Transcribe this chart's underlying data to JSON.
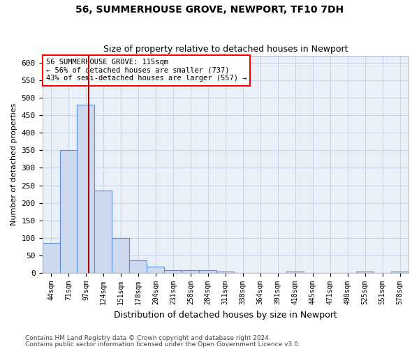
{
  "title": "56, SUMMERHOUSE GROVE, NEWPORT, TF10 7DH",
  "subtitle": "Size of property relative to detached houses in Newport",
  "xlabel": "Distribution of detached houses by size in Newport",
  "ylabel": "Number of detached properties",
  "categories": [
    "44sqm",
    "71sqm",
    "97sqm",
    "124sqm",
    "151sqm",
    "178sqm",
    "204sqm",
    "231sqm",
    "258sqm",
    "284sqm",
    "311sqm",
    "338sqm",
    "364sqm",
    "391sqm",
    "418sqm",
    "445sqm",
    "471sqm",
    "498sqm",
    "525sqm",
    "551sqm",
    "578sqm"
  ],
  "values": [
    85,
    350,
    480,
    235,
    100,
    37,
    18,
    8,
    8,
    8,
    5,
    0,
    0,
    0,
    5,
    0,
    0,
    0,
    5,
    0,
    5
  ],
  "bar_facecolor": "#ccd9ee",
  "bar_edgecolor": "#5b8dd9",
  "grid_color": "#c8d4e8",
  "background_color": "#eaf0f8",
  "red_line_x": 2.18,
  "annotation_lines": [
    "56 SUMMERHOUSE GROVE: 115sqm",
    "← 56% of detached houses are smaller (737)",
    "43% of semi-detached houses are larger (557) →"
  ],
  "footer_line1": "Contains HM Land Registry data © Crown copyright and database right 2024.",
  "footer_line2": "Contains public sector information licensed under the Open Government Licence v3.0.",
  "ylim": [
    0,
    620
  ],
  "yticks": [
    0,
    50,
    100,
    150,
    200,
    250,
    300,
    350,
    400,
    450,
    500,
    550,
    600
  ]
}
